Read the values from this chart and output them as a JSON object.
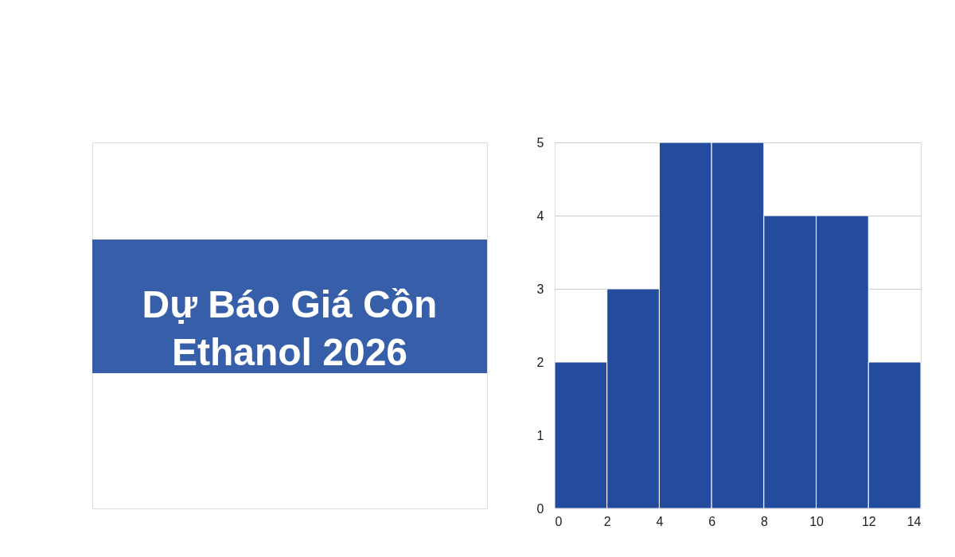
{
  "chart_data": {
    "type": "histogram",
    "title": "Dự Báo Giá Cồn Ethanol 2026",
    "bins": [
      0,
      2,
      4,
      6,
      8,
      10,
      12,
      14
    ],
    "values": [
      2,
      3,
      5,
      5,
      4,
      4,
      2
    ],
    "color": "#244c9e",
    "xlim": [
      0,
      14
    ],
    "xticks": [
      0,
      2,
      4,
      6,
      8,
      10,
      12,
      14
    ],
    "ylim": [
      0,
      5
    ],
    "yticks": [
      0,
      1,
      2,
      3,
      4,
      5
    ],
    "grid": "y"
  }
}
